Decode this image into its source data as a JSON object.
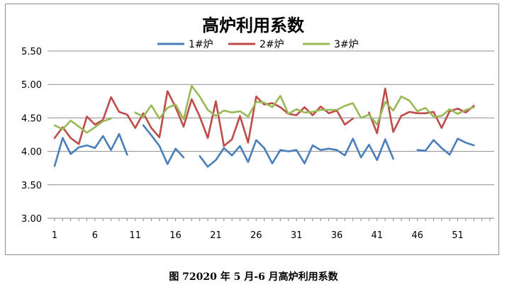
{
  "chart_data": {
    "type": "line",
    "title": "高炉利用系数",
    "xlabel": "",
    "ylabel": "",
    "ylim": [
      3.0,
      5.5
    ],
    "yticks": [
      "3.00",
      "3.50",
      "4.00",
      "4.50",
      "5.00",
      "5.50"
    ],
    "xtick_labels": [
      "1",
      "6",
      "11",
      "16",
      "21",
      "26",
      "31",
      "36",
      "41",
      "46",
      "51"
    ],
    "x_start": 1,
    "x_end": 55,
    "grid": "horizontal",
    "legend_position": "top",
    "series": [
      {
        "name": "1#炉",
        "color": "#4a7ebb",
        "values": [
          3.78,
          4.2,
          3.96,
          4.06,
          4.09,
          4.05,
          4.23,
          4.02,
          4.26,
          3.95,
          null,
          4.39,
          4.24,
          4.08,
          3.81,
          4.04,
          3.91,
          null,
          3.93,
          3.77,
          3.87,
          4.05,
          3.94,
          4.08,
          3.84,
          4.17,
          4.05,
          3.82,
          4.02,
          4.0,
          4.02,
          3.82,
          4.09,
          4.02,
          4.04,
          4.02,
          3.94,
          4.19,
          3.91,
          4.1,
          3.87,
          4.18,
          3.89,
          null,
          null,
          4.02,
          4.01,
          4.17,
          4.05,
          3.95,
          4.19,
          4.13,
          4.09
        ]
      },
      {
        "name": "2#炉",
        "color": "#be4b48",
        "values": [
          4.2,
          4.36,
          4.2,
          4.11,
          4.52,
          4.4,
          4.47,
          4.81,
          4.59,
          4.55,
          4.35,
          4.57,
          4.35,
          4.21,
          4.9,
          4.66,
          4.37,
          4.78,
          4.52,
          4.2,
          4.75,
          4.08,
          4.18,
          4.53,
          4.13,
          4.82,
          4.7,
          4.72,
          4.66,
          4.56,
          4.54,
          4.66,
          4.54,
          4.67,
          4.57,
          4.61,
          4.4,
          4.49,
          null,
          4.58,
          4.27,
          4.94,
          4.29,
          4.53,
          4.59,
          4.57,
          4.57,
          4.59,
          4.35,
          4.6,
          4.64,
          4.58,
          4.68
        ]
      },
      {
        "name": "3#炉",
        "color": "#98b954",
        "values": [
          4.39,
          4.33,
          4.46,
          4.37,
          4.28,
          4.36,
          4.45,
          4.49,
          null,
          null,
          4.58,
          4.52,
          4.69,
          4.49,
          4.65,
          4.7,
          4.48,
          4.98,
          4.82,
          4.62,
          4.53,
          4.61,
          4.58,
          4.6,
          4.52,
          4.74,
          4.73,
          4.66,
          4.83,
          4.56,
          4.63,
          4.58,
          4.59,
          4.62,
          4.62,
          4.62,
          4.68,
          4.72,
          4.5,
          4.55,
          4.4,
          4.74,
          4.61,
          4.82,
          4.76,
          4.6,
          4.65,
          4.52,
          4.53,
          4.63,
          4.56,
          4.62,
          4.66
        ]
      }
    ]
  },
  "caption": "图 72020 年 5 月-6 月高炉利用系数"
}
